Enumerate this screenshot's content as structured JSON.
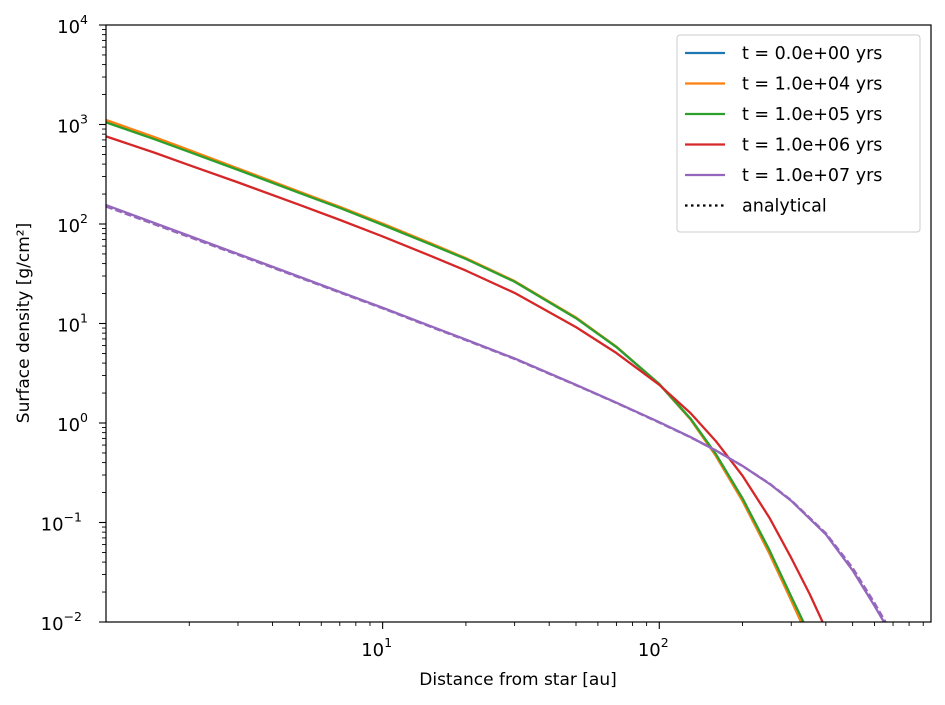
{
  "chart_data": {
    "type": "line",
    "xlabel": "Distance from star [au]",
    "ylabel": "Surface density [g/cm²]",
    "xscale": "log",
    "yscale": "log",
    "xlim": [
      1.0,
      960
    ],
    "ylim": [
      0.01,
      10000
    ],
    "x_ticks": [
      {
        "value": 10,
        "base": "10",
        "exp": "1"
      },
      {
        "value": 100,
        "base": "10",
        "exp": "2"
      }
    ],
    "y_ticks": [
      {
        "value": 0.01,
        "base": "10",
        "exp": "−2"
      },
      {
        "value": 0.1,
        "base": "10",
        "exp": "−1"
      },
      {
        "value": 1,
        "base": "10",
        "exp": "0"
      },
      {
        "value": 10,
        "base": "10",
        "exp": "1"
      },
      {
        "value": 100,
        "base": "10",
        "exp": "2"
      },
      {
        "value": 1000,
        "base": "10",
        "exp": "3"
      },
      {
        "value": 10000,
        "base": "10",
        "exp": "4"
      }
    ],
    "grid": false,
    "legend_position": "top-right",
    "legend": [
      {
        "label": "t = 0.0e+00 yrs",
        "color": "#1f77b4",
        "style": "solid"
      },
      {
        "label": "t = 1.0e+04 yrs",
        "color": "#ff7f0e",
        "style": "solid"
      },
      {
        "label": "t = 1.0e+05 yrs",
        "color": "#2ca02c",
        "style": "solid"
      },
      {
        "label": "t = 1.0e+06 yrs",
        "color": "#d62728",
        "style": "solid"
      },
      {
        "label": "t = 1.0e+07 yrs",
        "color": "#9467bd",
        "style": "solid"
      },
      {
        "label": "analytical",
        "color": "#000000",
        "style": "dotted"
      }
    ],
    "series": [
      {
        "name": "t = 0.0e+00 yrs",
        "color": "#1f77b4",
        "style": "solid",
        "x": [
          1.0,
          1.5,
          2,
          3,
          5,
          7,
          10,
          15,
          20,
          30,
          50,
          70,
          100,
          130,
          160,
          200,
          250,
          300,
          340
        ],
        "y": [
          1100,
          740,
          550,
          360,
          210,
          148,
          100,
          63,
          45,
          26.5,
          11.4,
          5.8,
          2.45,
          1.08,
          0.47,
          0.165,
          0.049,
          0.0165,
          0.0077
        ]
      },
      {
        "name": "t = 1.0e+04 yrs",
        "color": "#ff7f0e",
        "style": "solid",
        "x": [
          1.0,
          1.5,
          2,
          3,
          5,
          7,
          10,
          15,
          20,
          30,
          50,
          70,
          100,
          130,
          160,
          200,
          250,
          300,
          340
        ],
        "y": [
          1110,
          745,
          553,
          362,
          211,
          149,
          101,
          63.5,
          45.3,
          26.7,
          11.5,
          5.85,
          2.46,
          1.08,
          0.47,
          0.165,
          0.049,
          0.0165,
          0.0077
        ]
      },
      {
        "name": "t = 1.0e+05 yrs",
        "color": "#2ca02c",
        "style": "solid",
        "x": [
          1.0,
          1.5,
          2,
          3,
          5,
          7,
          10,
          15,
          20,
          30,
          50,
          70,
          100,
          130,
          160,
          200,
          250,
          300,
          345
        ],
        "y": [
          1050,
          710,
          530,
          350,
          205,
          145,
          98,
          62,
          44.5,
          26.3,
          11.3,
          5.8,
          2.47,
          1.1,
          0.49,
          0.175,
          0.053,
          0.018,
          0.008
        ]
      },
      {
        "name": "t = 1.0e+06 yrs",
        "color": "#d62728",
        "style": "solid",
        "x": [
          1.0,
          1.5,
          2,
          3,
          5,
          7,
          10,
          15,
          20,
          30,
          50,
          70,
          100,
          130,
          160,
          200,
          250,
          300,
          350,
          400
        ],
        "y": [
          760,
          520,
          390,
          262,
          156,
          110,
          75,
          47.5,
          34,
          20.3,
          9.2,
          5.05,
          2.42,
          1.25,
          0.66,
          0.295,
          0.112,
          0.044,
          0.019,
          0.0085
        ]
      },
      {
        "name": "t = 1.0e+07 yrs",
        "color": "#9467bd",
        "style": "solid",
        "x": [
          1.0,
          1.5,
          2,
          3,
          5,
          7,
          10,
          15,
          20,
          30,
          50,
          70,
          100,
          130,
          160,
          200,
          250,
          300,
          400,
          500,
          600,
          680
        ],
        "y": [
          155,
          102,
          76,
          50,
          29.5,
          20.8,
          14.4,
          9.35,
          6.9,
          4.45,
          2.42,
          1.6,
          1.02,
          0.72,
          0.53,
          0.37,
          0.245,
          0.165,
          0.076,
          0.033,
          0.0145,
          0.008
        ]
      },
      {
        "name": "analytical",
        "color": "#9467bd",
        "style": "dashed",
        "x": [
          1.0,
          1.5,
          2,
          3,
          5,
          7,
          10,
          15,
          20,
          30,
          50,
          70,
          100,
          130,
          160,
          200,
          250,
          300,
          400,
          500,
          600,
          680
        ],
        "y": [
          150,
          99,
          74,
          49,
          29,
          20.5,
          14.2,
          9.2,
          6.8,
          4.4,
          2.4,
          1.59,
          1.01,
          0.715,
          0.53,
          0.37,
          0.247,
          0.167,
          0.078,
          0.035,
          0.0155,
          0.0085
        ]
      }
    ]
  }
}
